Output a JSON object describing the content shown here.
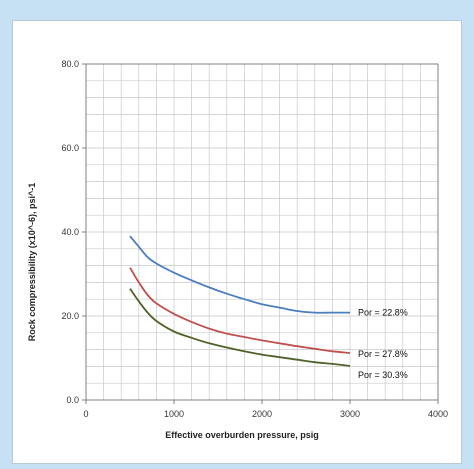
{
  "chart_data": {
    "type": "line",
    "title": "",
    "xlabel": "Effective overburden pressure, psig",
    "ylabel": "Rock compressibility (x10^-6), psi^-1",
    "xlim": [
      0,
      4000
    ],
    "ylim": [
      0,
      80
    ],
    "xticks": [
      0,
      1000,
      2000,
      3000,
      4000
    ],
    "xtick_labels": [
      "0",
      "1000",
      "2000",
      "3000",
      "4000"
    ],
    "yticks": [
      0,
      20,
      40,
      60,
      80
    ],
    "ytick_labels": [
      "0.0",
      "20.0",
      "40.0",
      "60.0",
      "80.0"
    ],
    "grid": true,
    "legend": "none",
    "series": [
      {
        "name": "Por = 22.8%",
        "color": "#4a7ebf",
        "x": [
          500,
          600,
          700,
          800,
          1000,
          1200,
          1400,
          1600,
          1800,
          2000,
          2200,
          2400,
          2600,
          2800,
          3000
        ],
        "y": [
          39.0,
          36.5,
          34.0,
          32.5,
          30.3,
          28.5,
          26.8,
          25.3,
          24.0,
          22.8,
          22.0,
          21.2,
          20.8,
          20.8,
          20.8
        ]
      },
      {
        "name": "Por = 27.8%",
        "color": "#c0504d",
        "x": [
          500,
          600,
          700,
          800,
          1000,
          1200,
          1400,
          1600,
          1800,
          2000,
          2200,
          2400,
          2600,
          2800,
          3000
        ],
        "y": [
          31.5,
          28.0,
          25.0,
          23.0,
          20.5,
          18.6,
          17.0,
          15.8,
          15.0,
          14.2,
          13.5,
          12.8,
          12.2,
          11.6,
          11.2
        ]
      },
      {
        "name": "Por = 30.3%",
        "color": "#4f6228",
        "x": [
          500,
          600,
          700,
          800,
          1000,
          1200,
          1400,
          1600,
          1800,
          2000,
          2200,
          2400,
          2600,
          2800,
          3000
        ],
        "y": [
          26.5,
          23.5,
          20.8,
          18.8,
          16.3,
          14.8,
          13.5,
          12.5,
          11.6,
          10.8,
          10.2,
          9.6,
          9.0,
          8.6,
          8.1
        ]
      }
    ]
  }
}
